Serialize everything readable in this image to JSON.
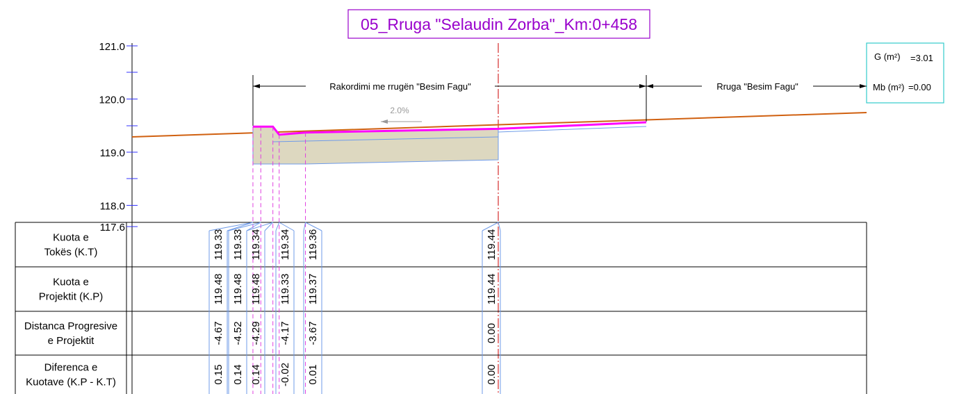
{
  "title": "05_Rruga \"Selaudin Zorba\"_Km:0+458",
  "axis": {
    "ticks": [
      {
        "value": 121.0,
        "label": "121.0"
      },
      {
        "value": 120.0,
        "label": "120.0"
      },
      {
        "value": 119.0,
        "label": "119.0"
      },
      {
        "value": 118.0,
        "label": "118.0"
      },
      {
        "value": 117.6,
        "label": "117.6"
      }
    ]
  },
  "annotations": {
    "connection": "Rakordimi me rrugën \"Besim Fagu\"",
    "road": "Rruga \"Besim Fagu\"",
    "slope": "2.0%"
  },
  "areas": {
    "g_label": "G (m²)",
    "g_value": "=3.01",
    "mb_label": "Mb (m²)",
    "mb_value": "=0.00"
  },
  "table": {
    "rows": [
      {
        "label_lines": [
          "Kuota e",
          "Tokës (K.T)"
        ],
        "cells": [
          "119.33",
          "119.33",
          "119.34",
          "119.34",
          "119.36",
          "119.44"
        ]
      },
      {
        "label_lines": [
          "Kuota e",
          "Projektit (K.P)"
        ],
        "cells": [
          "119.48",
          "119.48",
          "119.48",
          "119.33",
          "119.37",
          "119.44"
        ]
      },
      {
        "label_lines": [
          "Distanca Progresive",
          "e Projektit"
        ],
        "cells": [
          "-4.67",
          "-4.52",
          "-4.29",
          "-4.17",
          "-3.67",
          "0.00"
        ]
      },
      {
        "label_lines": [
          "Diferenca e",
          "Kuotave (K.P - K.T)"
        ],
        "cells": [
          "0.15",
          "0.14",
          "0.14",
          "-0.02",
          "0.01",
          "0.00"
        ]
      }
    ]
  }
}
